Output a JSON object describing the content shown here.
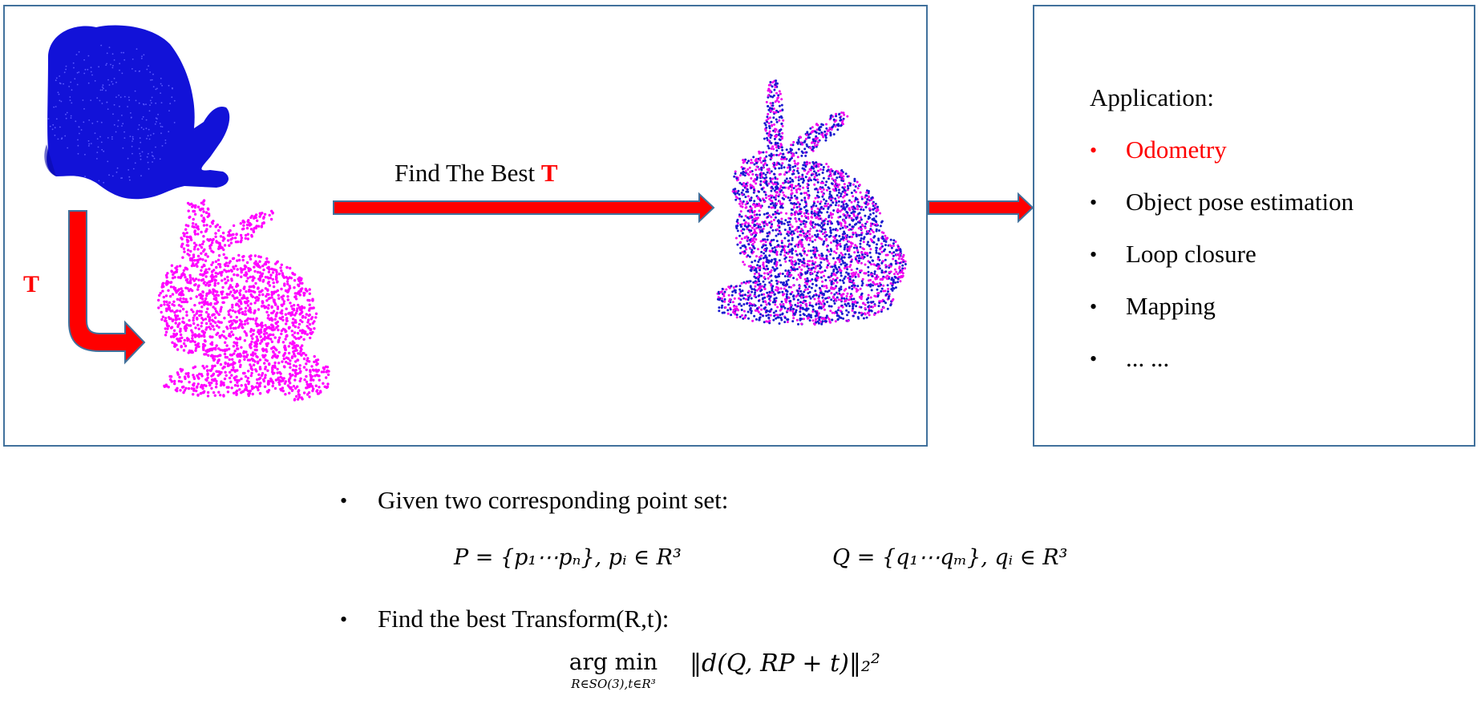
{
  "diagram": {
    "transform_label": "T",
    "arrow_caption": "Find The Best ",
    "arrow_caption_highlight": "T"
  },
  "application": {
    "title": "Application:",
    "items": [
      "Odometry",
      "Object pose estimation",
      "Loop closure",
      "Mapping",
      "... ..."
    ],
    "highlight_color": "#ff0000"
  },
  "problem": {
    "given_text": "Given two corresponding point set:",
    "find_text": "Find the best Transform(R,t):",
    "set_P": "P = {p₁⋯pₙ}, pᵢ ∈ R³",
    "set_Q": "Q = {q₁⋯qₘ}, qᵢ ∈ R³",
    "objective_op": "arg min",
    "objective_sub": "R∈SO(3),t∈R³",
    "objective_expr": "‖d(Q, RP + t)‖₂²"
  },
  "colors": {
    "source_cloud": "#1010e0",
    "target_cloud": "#ff00ff",
    "arrow_fill": "#ff0000",
    "arrow_stroke": "#41719c",
    "panel_border": "#41719c"
  }
}
